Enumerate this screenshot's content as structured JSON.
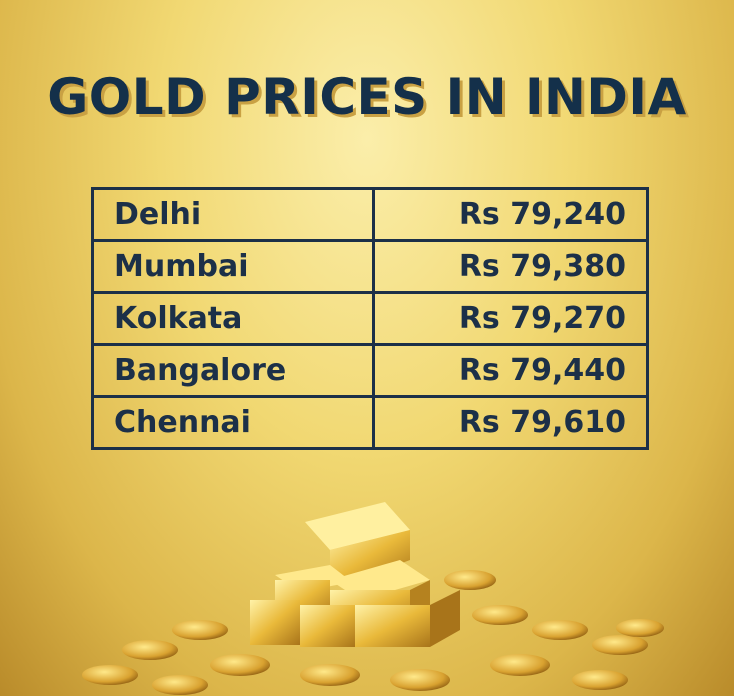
{
  "title": "GOLD PRICES IN INDIA",
  "table": {
    "rows": [
      [
        "Delhi",
        "Rs 79,240"
      ],
      [
        "Mumbai",
        "Rs 79,380"
      ],
      [
        "Kolkata",
        "Rs 79,270"
      ],
      [
        "Bangalore",
        "Rs 79,440"
      ],
      [
        "Chennai",
        "Rs 79,610"
      ]
    ]
  }
}
